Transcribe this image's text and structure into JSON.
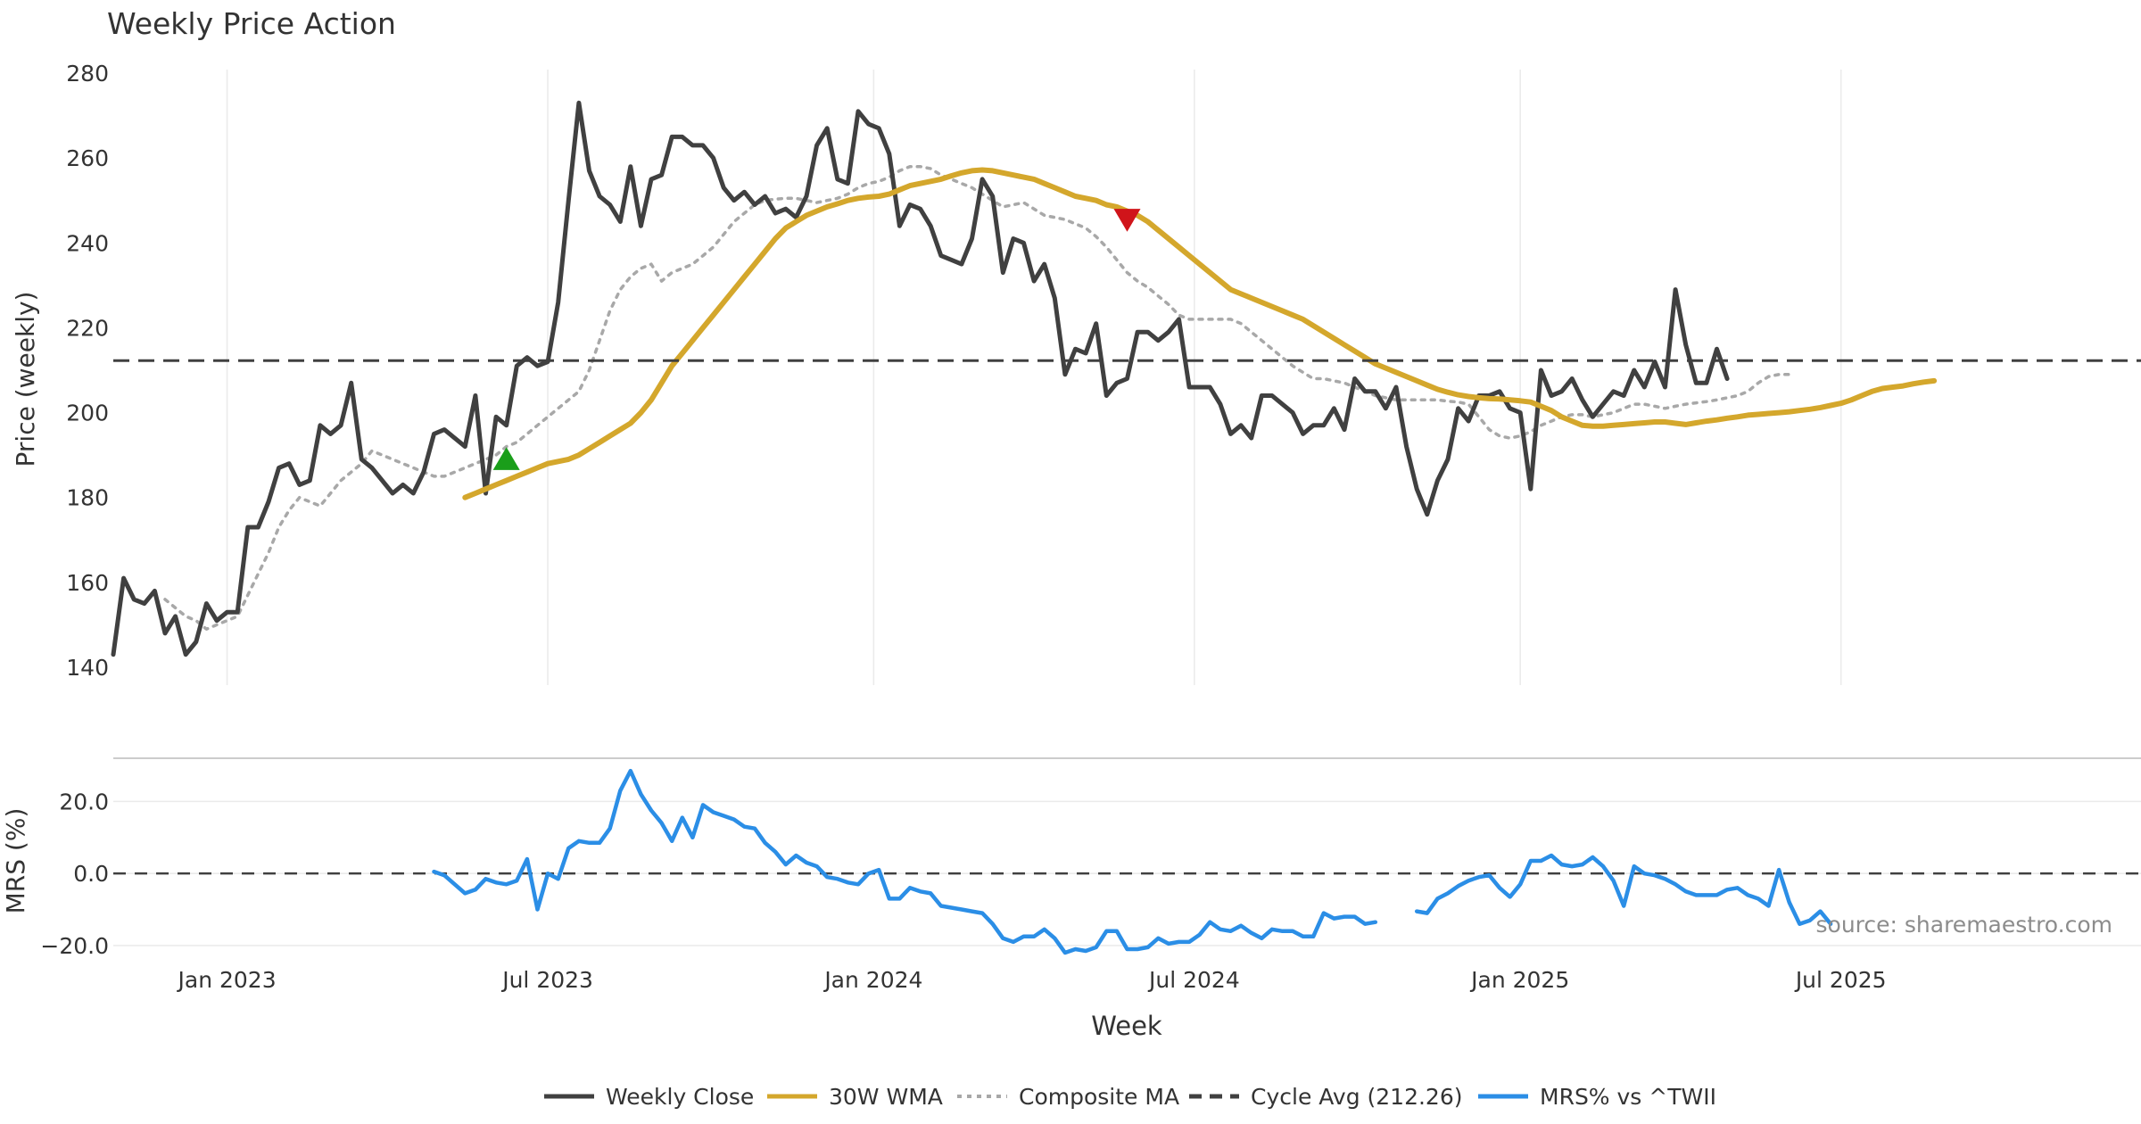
{
  "colors": {
    "close": "#404040",
    "wma": "#d4a72c",
    "composite": "#a8a8a8",
    "cycle": "#404040",
    "mrs": "#2b8ee6",
    "buy": "#1a9e1a",
    "sell": "#d0141a",
    "grid": "#ebebeb",
    "text": "#333333",
    "source": "#8c8c8c"
  },
  "chart_data": [
    {
      "type": "line",
      "title": "Weekly Price Action",
      "xlabel": "Week",
      "ylabel": "Price (weekly)",
      "ylim": [
        140,
        280
      ],
      "yticks": [
        140,
        160,
        180,
        200,
        220,
        240,
        260,
        280
      ],
      "xlim": [
        -11,
        185
      ],
      "x_ticks": [
        {
          "x": 0,
          "label": "Jan 2023"
        },
        {
          "x": 31,
          "label": "Jul 2023"
        },
        {
          "x": 62.5,
          "label": "Jan 2024"
        },
        {
          "x": 93.5,
          "label": "Jul 2024"
        },
        {
          "x": 125,
          "label": "Jan 2025"
        },
        {
          "x": 156,
          "label": "Jul 2025"
        }
      ],
      "grid": true,
      "cycle_avg": 212.26,
      "series": [
        {
          "name": "Weekly Close",
          "style": "solid",
          "start": -11,
          "values": [
            143,
            161,
            156,
            155,
            158,
            148,
            152,
            143,
            146,
            155,
            151,
            153,
            153,
            173,
            173,
            179,
            187,
            188,
            183,
            184,
            197,
            195,
            197,
            207,
            189,
            187,
            184,
            181,
            183,
            181,
            186,
            195,
            196,
            194,
            192,
            204,
            181,
            199,
            197,
            211,
            213,
            211,
            212,
            226,
            250,
            273,
            257,
            251,
            249,
            245,
            258,
            244,
            255,
            256,
            265,
            265,
            263,
            263,
            260,
            253,
            250,
            252,
            249,
            251,
            247,
            248,
            246,
            251,
            263,
            267,
            255,
            254,
            271,
            268,
            267,
            261,
            244,
            249,
            248,
            244,
            237,
            236,
            235,
            241,
            255,
            251,
            233,
            241,
            240,
            231,
            235,
            227,
            209,
            215,
            214,
            221,
            204,
            207,
            208,
            219,
            219,
            217,
            219,
            222,
            206,
            206,
            206,
            202,
            195,
            197,
            194,
            204,
            204,
            202,
            200,
            195,
            197,
            197,
            201,
            196,
            208,
            205,
            205,
            201,
            206,
            192,
            182,
            176,
            184,
            189,
            201,
            198,
            204,
            204,
            205,
            201,
            200,
            182,
            210,
            204,
            205,
            208,
            203,
            199,
            202,
            205,
            204,
            210,
            206,
            212,
            206,
            229,
            216,
            207,
            207,
            215,
            208
          ]
        },
        {
          "name": "30W WMA",
          "style": "solid",
          "start": 23,
          "values": [
            180,
            181,
            182,
            183,
            184,
            185,
            186,
            187,
            188,
            188.5,
            189,
            190,
            191.5,
            193,
            194.5,
            196,
            197.5,
            200,
            203,
            207,
            211,
            214,
            217,
            220,
            223,
            226,
            229,
            232,
            235,
            238,
            241,
            243.5,
            245,
            246.5,
            247.5,
            248.5,
            249.2,
            250,
            250.5,
            250.8,
            251,
            251.5,
            252.5,
            253.5,
            254,
            254.5,
            255,
            255.8,
            256.5,
            257,
            257.2,
            257,
            256.5,
            256,
            255.5,
            255,
            254,
            253,
            252,
            251,
            250.5,
            250,
            249,
            248.5,
            247.5,
            246.5,
            245,
            243,
            241,
            239,
            237,
            235,
            233,
            231,
            229,
            228,
            227,
            226,
            225,
            224,
            223,
            222,
            220.5,
            219,
            217.5,
            216,
            214.5,
            213,
            211.5,
            210.5,
            209.5,
            208.5,
            207.5,
            206.5,
            205.5,
            204.8,
            204.2,
            203.8,
            203.5,
            203.3,
            203.2,
            203,
            202.8,
            202.5,
            201.5,
            200.5,
            199,
            198,
            197,
            196.8,
            196.8,
            197,
            197.2,
            197.4,
            197.6,
            197.8,
            197.8,
            197.5,
            197.2,
            197.6,
            198,
            198.3,
            198.7,
            199,
            199.4,
            199.6,
            199.8,
            200,
            200.2,
            200.5,
            200.8,
            201.2,
            201.7,
            202.2,
            203,
            204,
            205,
            205.7,
            206,
            206.3,
            206.8,
            207.2,
            207.5
          ]
        },
        {
          "name": "Composite MA",
          "style": "dotted",
          "start": -6,
          "values": [
            156,
            154,
            152,
            151,
            149,
            150,
            151,
            152,
            157,
            162,
            167,
            173,
            177,
            180,
            179,
            178,
            181,
            184,
            186,
            188,
            191,
            190,
            189,
            188,
            187,
            186,
            185,
            185,
            186,
            187,
            188,
            189,
            190,
            192,
            193,
            195,
            197,
            199,
            201,
            203,
            205,
            210,
            217,
            224,
            229,
            232,
            234,
            235,
            231,
            233,
            234,
            235,
            237,
            239,
            242,
            245,
            247,
            249,
            250,
            250.3,
            250.5,
            250.5,
            250,
            249.5,
            250,
            250.5,
            251.5,
            253,
            254,
            254.5,
            255.5,
            257,
            258,
            258,
            257.5,
            256,
            255,
            254,
            253,
            251.5,
            250,
            248.5,
            249,
            249.5,
            248,
            246.5,
            246,
            245.5,
            244.5,
            243.5,
            241.5,
            239,
            236,
            233,
            231,
            229.5,
            227.5,
            225.5,
            223,
            222,
            222,
            222,
            222,
            222,
            221,
            219,
            217,
            215,
            213,
            211,
            209.5,
            208,
            208,
            207.5,
            207,
            206,
            205,
            204,
            203.5,
            203,
            203,
            203,
            203,
            203,
            202.7,
            202.5,
            202,
            199,
            196,
            194.5,
            194,
            194.5,
            195.5,
            197,
            198,
            199,
            199.5,
            199.5,
            199,
            199.5,
            200,
            201,
            202,
            202,
            201.5,
            201,
            201.5,
            202,
            202.3,
            202.6,
            203,
            203.5,
            204,
            205,
            207,
            208.5,
            209,
            209
          ]
        }
      ],
      "signals": [
        {
          "type": "buy",
          "x": 27,
          "y": 188.5
        },
        {
          "type": "sell",
          "x": 87,
          "y": 246
        }
      ]
    },
    {
      "type": "line",
      "ylabel": "MRS (%)",
      "ylim": [
        -22,
        30
      ],
      "yticks": [
        {
          "value": 20,
          "label": "20.0"
        },
        {
          "value": 0,
          "label": "0.0"
        },
        {
          "value": -20,
          "label": "−20.0"
        }
      ],
      "baseline": 0,
      "series": [
        {
          "name": "MRS% vs ^TWII",
          "style": "solid",
          "segments": [
            {
              "start": 20,
              "values": [
                0.5,
                -0.5,
                -3,
                -5.5,
                -4.5,
                -1.5,
                -2.5,
                -3,
                -2,
                4,
                -10,
                0,
                -1.5,
                7,
                9,
                8.5,
                8.5,
                12.5,
                23,
                28.5,
                22,
                17.5,
                14,
                9,
                15.5,
                10,
                19,
                17,
                16,
                15,
                13,
                12.5,
                8.5,
                6,
                2.5,
                5,
                3,
                2,
                -1,
                -1.5,
                -2.5,
                -3,
                0,
                1,
                -7,
                -7,
                -4,
                -5,
                -5.5,
                -9,
                -9.5,
                -10,
                -10.5,
                -11,
                -14,
                -18,
                -19,
                -17.5,
                -17.5,
                -15.5,
                -18,
                -22,
                -21,
                -21.5,
                -20.5,
                -16,
                -16,
                -21,
                -21,
                -20.5,
                -18,
                -19.5,
                -19,
                -19,
                -17,
                -13.5,
                -15.5,
                -16,
                -14.5,
                -16.5,
                -18,
                -15.5,
                -16,
                -16,
                -17.5,
                -17.5,
                -11,
                -12.5,
                -12,
                -12,
                -14,
                -13.5
              ]
            },
            {
              "start": 115,
              "values": [
                -10.5,
                -11,
                -7,
                -5.5,
                -3.5,
                -2,
                -1,
                -0.5,
                -4,
                -6.5,
                -3,
                3.5,
                3.5,
                5,
                2.5,
                2,
                2.5,
                4.5,
                2,
                -2,
                -9,
                2,
                0,
                -0.5,
                -1.5,
                -3,
                -5,
                -6,
                -6,
                -6,
                -4.5,
                -4,
                -6,
                -7,
                -9,
                1,
                -8,
                -14,
                -13,
                -10.5,
                -14
              ]
            }
          ]
        }
      ],
      "source_text": "source: sharemaestro.com"
    }
  ],
  "legend": [
    {
      "key": "close",
      "label": "Weekly Close",
      "style": "solid"
    },
    {
      "key": "wma",
      "label": "30W WMA",
      "style": "solid"
    },
    {
      "key": "composite",
      "label": "Composite MA",
      "style": "dotted"
    },
    {
      "key": "cycle",
      "label": "Cycle Avg (212.26)",
      "style": "dashed"
    },
    {
      "key": "mrs",
      "label": "MRS% vs ^TWII",
      "style": "solid"
    }
  ]
}
